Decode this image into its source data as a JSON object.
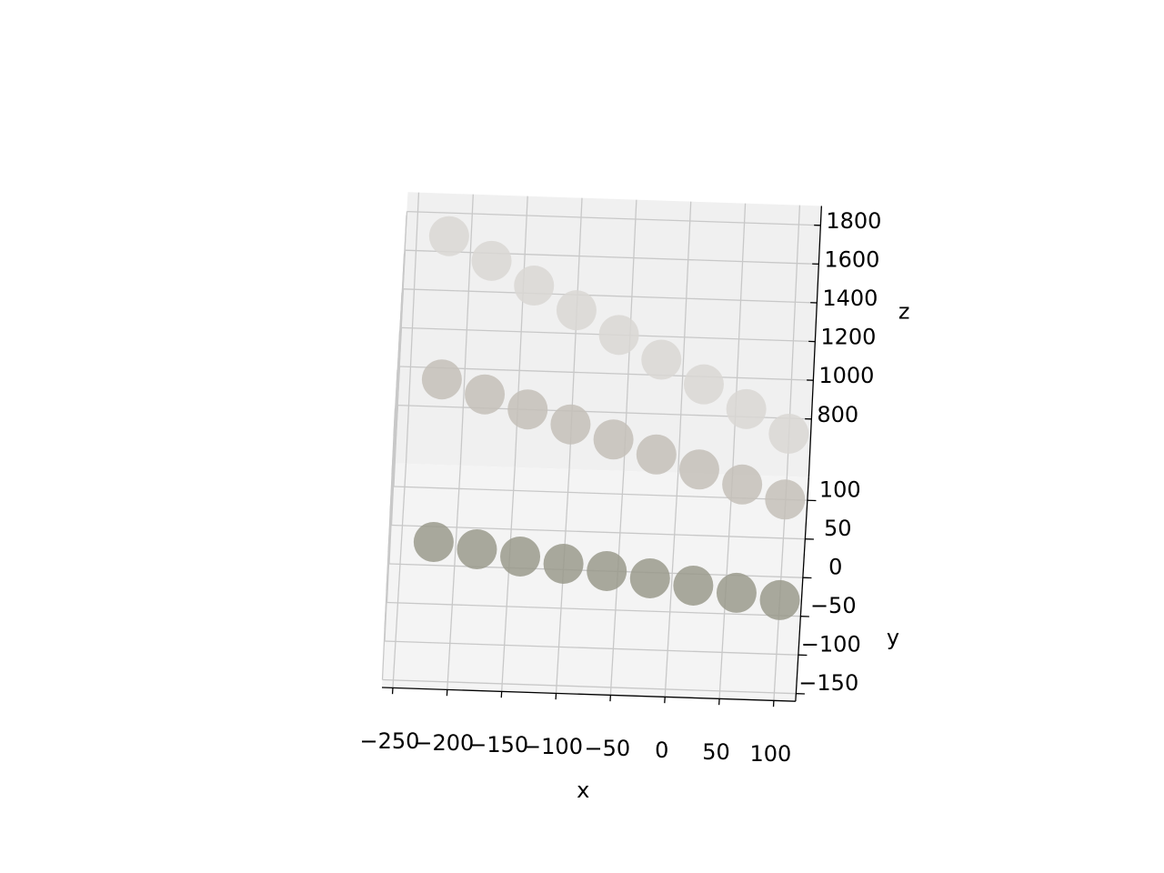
{
  "chart_data": {
    "type": "scatter3d",
    "xlabel": "x",
    "ylabel": "y",
    "zlabel": "z",
    "xlim": [
      -260,
      120
    ],
    "ylim": [
      -160,
      130
    ],
    "zlim": [
      500,
      1900
    ],
    "xticks": [
      {
        "value": -250,
        "label": "−250"
      },
      {
        "value": -200,
        "label": "−200"
      },
      {
        "value": -150,
        "label": "−150"
      },
      {
        "value": -100,
        "label": "−100"
      },
      {
        "value": -50,
        "label": "−50"
      },
      0,
      50,
      100
    ],
    "yticks": [
      {
        "value": -150,
        "label": "−150"
      },
      {
        "value": -100,
        "label": "−100"
      },
      {
        "value": -50,
        "label": "−50"
      },
      0,
      50,
      100
    ],
    "zticks": [
      800,
      1000,
      1200,
      1400,
      1600,
      1800
    ],
    "grid": true,
    "series": [
      {
        "color": "#d9d7d4",
        "x": [
          -220,
          -180,
          -140,
          -100,
          -60,
          -20,
          20,
          60,
          100
        ],
        "y": [
          100,
          100,
          100,
          100,
          100,
          100,
          100,
          100,
          100
        ],
        "z": [
          1800,
          1680,
          1560,
          1440,
          1320,
          1200,
          1080,
          960,
          840
        ]
      },
      {
        "color": "#c4c0b8",
        "x": [
          -220,
          -180,
          -140,
          -100,
          -60,
          -20,
          20,
          60,
          100
        ],
        "y": [
          40,
          40,
          40,
          40,
          40,
          40,
          40,
          40,
          40
        ],
        "z": [
          1300,
          1230,
          1160,
          1090,
          1020,
          950,
          880,
          810,
          740
        ]
      },
      {
        "color": "#9a9a8c",
        "x": [
          -220,
          -180,
          -140,
          -100,
          -60,
          -20,
          20,
          60,
          100
        ],
        "y": [
          -20,
          -20,
          -20,
          -20,
          -20,
          -20,
          -20,
          -20,
          -20
        ],
        "z": [
          700,
          670,
          640,
          610,
          580,
          550,
          520,
          490,
          460
        ]
      }
    ]
  }
}
